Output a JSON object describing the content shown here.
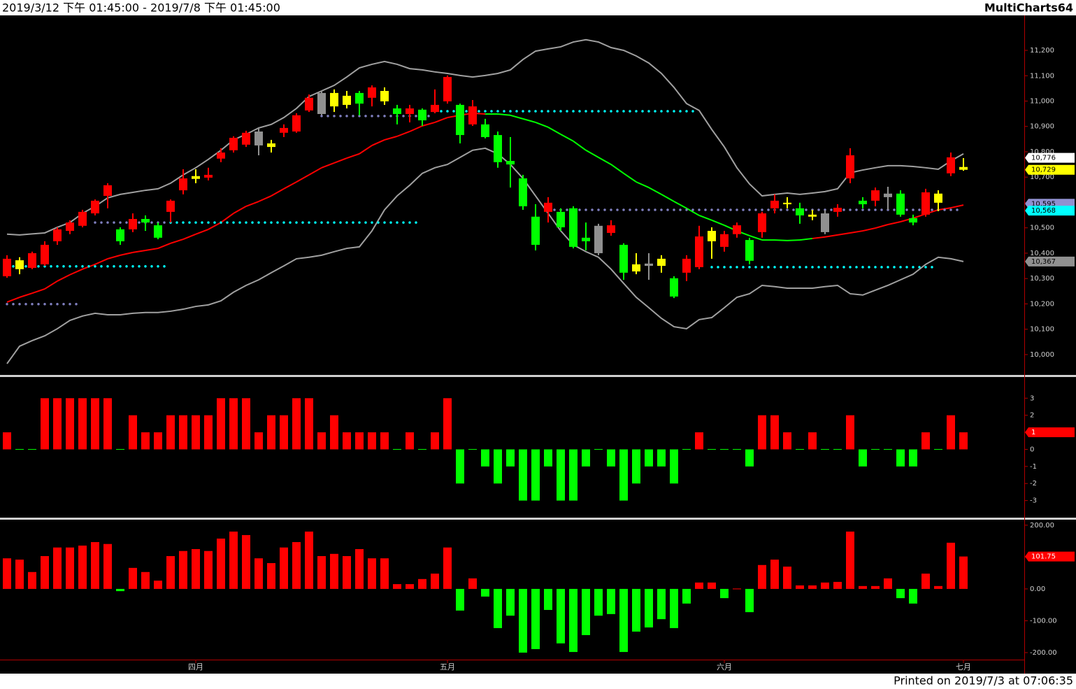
{
  "header": {
    "range": "2019/3/12 下午 01:45:00 - 2019/7/8 下午 01:45:00",
    "app": "MultiCharts64"
  },
  "footer": "Printed on 2019/7/3 at 07:06:35",
  "chart_data": [
    {
      "type": "candlestick",
      "open": [
        10309,
        10372,
        10342,
        10356,
        10447,
        10488,
        10508,
        10557,
        10626,
        10494,
        10494,
        10535,
        10510,
        10563,
        10648,
        10704,
        10698,
        10773,
        10806,
        10828,
        10880,
        10833,
        10875,
        10880,
        10963,
        11032,
        11032,
        11021,
        11032,
        11013,
        11040,
        10971,
        10949,
        10966,
        10957,
        10999,
        10985,
        10908,
        10908,
        10866,
        10764,
        10695,
        10544,
        10563,
        10563,
        10577,
        10461,
        10508,
        10480,
        10433,
        10356,
        10359,
        10378,
        10301,
        10323,
        10345,
        10488,
        10425,
        10475,
        10452,
        10483,
        10577,
        10599,
        10577,
        10552,
        10557,
        10563,
        10695,
        10607,
        10607,
        10635,
        10635,
        10538,
        10552,
        10635,
        10715,
        10740
      ],
      "high": [
        10392,
        10384,
        10406,
        10447,
        10502,
        10530,
        10571,
        10612,
        10676,
        10502,
        10557,
        10549,
        10521,
        10612,
        10731,
        10731,
        10737,
        10814,
        10861,
        10883,
        10897,
        10847,
        10908,
        10952,
        11026,
        11040,
        11046,
        11040,
        11040,
        11062,
        11054,
        10985,
        10985,
        10971,
        11046,
        11101,
        10990,
        11004,
        10930,
        10880,
        10858,
        10709,
        10593,
        10621,
        10577,
        10585,
        10521,
        10516,
        10530,
        10439,
        10400,
        10400,
        10392,
        10309,
        10392,
        10508,
        10502,
        10488,
        10521,
        10461,
        10563,
        10632,
        10621,
        10599,
        10571,
        10571,
        10593,
        10814,
        10621,
        10659,
        10662,
        10648,
        10552,
        10654,
        10648,
        10797,
        10775
      ],
      "low": [
        10303,
        10317,
        10337,
        10350,
        10433,
        10475,
        10502,
        10549,
        10577,
        10433,
        10483,
        10488,
        10455,
        10521,
        10632,
        10676,
        10687,
        10759,
        10797,
        10819,
        10786,
        10797,
        10858,
        10875,
        10957,
        10944,
        10957,
        10971,
        10944,
        10979,
        10985,
        10908,
        10916,
        10902,
        10952,
        10990,
        10833,
        10902,
        10853,
        10737,
        10659,
        10571,
        10411,
        10521,
        10488,
        10419,
        10411,
        10392,
        10469,
        10295,
        10317,
        10295,
        10323,
        10223,
        10290,
        10337,
        10378,
        10406,
        10461,
        10356,
        10461,
        10557,
        10577,
        10516,
        10530,
        10475,
        10544,
        10676,
        10577,
        10585,
        10571,
        10544,
        10510,
        10544,
        10566,
        10704,
        10725
      ],
      "close": [
        10378,
        10337,
        10400,
        10433,
        10494,
        10521,
        10563,
        10607,
        10668,
        10447,
        10535,
        10521,
        10461,
        10607,
        10695,
        10693,
        10709,
        10797,
        10855,
        10875,
        10825,
        10819,
        10894,
        10944,
        11013,
        10949,
        10979,
        10985,
        10990,
        11054,
        10999,
        10949,
        10971,
        10924,
        10985,
        11095,
        10866,
        10979,
        10858,
        10759,
        10750,
        10585,
        10433,
        10599,
        10502,
        10425,
        10447,
        10400,
        10510,
        10323,
        10328,
        10350,
        10350,
        10229,
        10378,
        10466,
        10447,
        10475,
        10510,
        10370,
        10557,
        10607,
        10593,
        10549,
        10544,
        10483,
        10579,
        10786,
        10593,
        10648,
        10621,
        10552,
        10521,
        10640,
        10599,
        10778,
        10729
      ],
      "colors": [
        "#ff0000",
        "#ffff00",
        "#ff0000",
        "#ff0000",
        "#ff0000",
        "#ff0000",
        "#ff0000",
        "#ff0000",
        "#ff0000",
        "#00ff00",
        "#ff0000",
        "#00ff00",
        "#00ff00",
        "#ff0000",
        "#ff0000",
        "#ffff00",
        "#ff0000",
        "#ff0000",
        "#ff0000",
        "#ff0000",
        "#909090",
        "#ffff00",
        "#ff0000",
        "#ff0000",
        "#ff0000",
        "#909090",
        "#ffff00",
        "#ffff00",
        "#00ff00",
        "#ff0000",
        "#ffff00",
        "#00ff00",
        "#ff0000",
        "#00ff00",
        "#ff0000",
        "#ff0000",
        "#00ff00",
        "#ff0000",
        "#00ff00",
        "#00ff00",
        "#00ff00",
        "#00ff00",
        "#00ff00",
        "#ff0000",
        "#00ff00",
        "#00ff00",
        "#00ff00",
        "#909090",
        "#ff0000",
        "#00ff00",
        "#ffff00",
        "#909090",
        "#ffff00",
        "#00ff00",
        "#ff0000",
        "#ff0000",
        "#ffff00",
        "#ff0000",
        "#ff0000",
        "#00ff00",
        "#ff0000",
        "#ff0000",
        "#ffff00",
        "#00ff00",
        "#ffff00",
        "#909090",
        "#ff0000",
        "#ff0000",
        "#00ff00",
        "#ff0000",
        "#909090",
        "#00ff00",
        "#00ff00",
        "#ff0000",
        "#ffff00",
        "#ff0000",
        "#ffff00"
      ],
      "lines": [
        {
          "color": "#a0a0a0",
          "values": [
            10475,
            10472,
            10476,
            10480,
            10502,
            10521,
            10557,
            10585,
            10618,
            10632,
            10640,
            10648,
            10654,
            10676,
            10709,
            10737,
            10770,
            10806,
            10847,
            10869,
            10894,
            10908,
            10935,
            10971,
            11018,
            11040,
            11062,
            11095,
            11131,
            11145,
            11156,
            11145,
            11128,
            11123,
            11115,
            11109,
            11101,
            11095,
            11101,
            11109,
            11123,
            11164,
            11197,
            11206,
            11214,
            11233,
            11242,
            11233,
            11211,
            11200,
            11178,
            11150,
            11109,
            11054,
            10990,
            10963,
            10888,
            10819,
            10737,
            10673,
            10626,
            10632,
            10637,
            10632,
            10637,
            10643,
            10654,
            10717,
            10728,
            10737,
            10745,
            10745,
            10742,
            10737,
            10731,
            10764,
            10792
          ]
        },
        {
          "color": "#a0a0a0",
          "values": [
            9964,
            10033,
            10055,
            10074,
            10102,
            10135,
            10152,
            10163,
            10157,
            10157,
            10163,
            10166,
            10166,
            10171,
            10179,
            10190,
            10196,
            10212,
            10246,
            10273,
            10295,
            10323,
            10350,
            10378,
            10384,
            10392,
            10406,
            10419,
            10425,
            10488,
            10571,
            10626,
            10668,
            10715,
            10737,
            10750,
            10778,
            10806,
            10814,
            10792,
            10750,
            10695,
            10626,
            10557,
            10488,
            10433,
            10406,
            10384,
            10337,
            10281,
            10226,
            10185,
            10143,
            10110,
            10102,
            10138,
            10146,
            10185,
            10226,
            10240,
            10273,
            10268,
            10262,
            10262,
            10262,
            10268,
            10273,
            10240,
            10235,
            10254,
            10273,
            10295,
            10317,
            10356,
            10384,
            10378,
            10367
          ]
        },
        {
          "colors": [
            "#ff0000",
            "#ff0000",
            "#ff0000",
            "#ff0000",
            "#ff0000",
            "#ff0000",
            "#ff0000",
            "#ff0000",
            "#ff0000",
            "#ff0000",
            "#ff0000",
            "#ff0000",
            "#ff0000",
            "#ff0000",
            "#ff0000",
            "#ff0000",
            "#ff0000",
            "#ff0000",
            "#ff0000",
            "#ff0000",
            "#ff0000",
            "#ff0000",
            "#ff0000",
            "#ff0000",
            "#ff0000",
            "#ff0000",
            "#ff0000",
            "#ff0000",
            "#ff0000",
            "#ff0000",
            "#ff0000",
            "#ff0000",
            "#ff0000",
            "#ff0000",
            "#ff0000",
            "#ff0000",
            "#ff0000",
            "#ff0000",
            "#00ff00",
            "#00ff00",
            "#00ff00",
            "#00ff00",
            "#00ff00",
            "#00ff00",
            "#00ff00",
            "#00ff00",
            "#00ff00",
            "#00ff00",
            "#00ff00",
            "#00ff00",
            "#00ff00",
            "#00ff00",
            "#00ff00",
            "#00ff00",
            "#00ff00",
            "#00ff00",
            "#00ff00",
            "#00ff00",
            "#00ff00",
            "#00ff00",
            "#00ff00",
            "#00ff00",
            "#00ff00",
            "#00ff00",
            "#ff0000",
            "#ff0000",
            "#ff0000",
            "#ff0000",
            "#ff0000",
            "#ff0000",
            "#ff0000",
            "#ff0000",
            "#ff0000",
            "#ff0000",
            "#ff0000",
            "#ff0000",
            "#ff0000"
          ],
          "values": [
            10207,
            10226,
            10242,
            10259,
            10290,
            10315,
            10337,
            10356,
            10378,
            10392,
            10403,
            10411,
            10419,
            10439,
            10455,
            10475,
            10494,
            10521,
            10557,
            10585,
            10604,
            10626,
            10654,
            10681,
            10709,
            10737,
            10756,
            10775,
            10792,
            10825,
            10847,
            10861,
            10880,
            10902,
            10916,
            10935,
            10944,
            10952,
            10949,
            10949,
            10944,
            10930,
            10916,
            10897,
            10869,
            10842,
            10806,
            10778,
            10750,
            10715,
            10681,
            10659,
            10632,
            10604,
            10577,
            10549,
            10530,
            10510,
            10488,
            10469,
            10452,
            10452,
            10450,
            10452,
            10458,
            10464,
            10472,
            10480,
            10488,
            10499,
            10513,
            10524,
            10538,
            10555,
            10571,
            10579,
            10590
          ]
        }
      ],
      "levels": [
        {
          "value": 10348,
          "start": 0,
          "end": 13,
          "color": "#00ffff"
        },
        {
          "value": 10199,
          "start": 0,
          "end": 6,
          "color": "#8080c0"
        },
        {
          "value": 10521,
          "start": 7,
          "end": 13,
          "color": "#8080c0"
        },
        {
          "value": 10521,
          "start": 13,
          "end": 33,
          "color": "#00ffff"
        },
        {
          "value": 10941,
          "start": 25,
          "end": 34,
          "color": "#8080c0"
        },
        {
          "value": 10960,
          "start": 34,
          "end": 55,
          "color": "#00ffff"
        },
        {
          "value": 10571,
          "start": 43,
          "end": 76,
          "color": "#8080c0"
        },
        {
          "value": 10345,
          "start": 56,
          "end": 74,
          "color": "#00ffff"
        }
      ],
      "ylim": [
        9917,
        11338
      ],
      "yticks": [
        {
          "value": 10000,
          "label": "10,000"
        },
        {
          "value": 10100,
          "label": "10,100"
        },
        {
          "value": 10200,
          "label": "10,200"
        },
        {
          "value": 10300,
          "label": "10,300"
        },
        {
          "value": 10400,
          "label": "10,400"
        },
        {
          "value": 10500,
          "label": "10,500"
        },
        {
          "value": 10600,
          "label": "10,600"
        },
        {
          "value": 10700,
          "label": "10,700"
        },
        {
          "value": 10800,
          "label": "10,800"
        },
        {
          "value": 10900,
          "label": "10,900"
        },
        {
          "value": 11000,
          "label": "11,000"
        },
        {
          "value": 11100,
          "label": "11,100"
        },
        {
          "value": 11200,
          "label": "11,200"
        }
      ],
      "price_tags": [
        {
          "value": 10776,
          "label": "10,776",
          "color": "#ffffff"
        },
        {
          "value": 10729,
          "label": "10,729",
          "color": "#ffff00"
        },
        {
          "value": 10595,
          "label": "10,595",
          "color": "#9090d0"
        },
        {
          "value": 10568,
          "label": "10,568",
          "color": "#00ffff"
        },
        {
          "value": 10367,
          "label": "10,367",
          "color": "#909090"
        }
      ]
    },
    {
      "type": "bar",
      "values": [
        1,
        0,
        0,
        3,
        3,
        3,
        3,
        3,
        3,
        0,
        2,
        1,
        1,
        2,
        2,
        2,
        2,
        3,
        3,
        3,
        1,
        2,
        2,
        3,
        3,
        1,
        2,
        1,
        1,
        1,
        1,
        0,
        1,
        0,
        1,
        3,
        -2,
        0,
        -1,
        -2,
        -1,
        -3,
        -3,
        -1,
        -3,
        -3,
        -1,
        0,
        -1,
        -3,
        -2,
        -1,
        -1,
        -2,
        0,
        1,
        0,
        0,
        0,
        -1,
        2,
        2,
        1,
        0,
        1,
        0,
        0,
        2,
        -1,
        0,
        0,
        -1,
        -1,
        1,
        0,
        2,
        1
      ],
      "up_color": "#ff0000",
      "down_color": "#00ff00",
      "ylim": [
        -4,
        4.2
      ],
      "yticks": [
        3,
        2,
        1,
        0,
        -1,
        -2,
        -3
      ],
      "price_tags": [
        {
          "value": 1,
          "label": "1",
          "color": "#ff0000"
        }
      ]
    },
    {
      "type": "bar",
      "values": [
        96,
        92,
        53,
        103,
        130,
        130,
        136,
        147,
        141,
        -7,
        66,
        53,
        26,
        103,
        119,
        125,
        119,
        158,
        180,
        169,
        96,
        81,
        130,
        147,
        180,
        103,
        110,
        103,
        125,
        96,
        96,
        15,
        15,
        31,
        48,
        130,
        -68,
        33,
        -24,
        -123,
        -84,
        -200,
        -189,
        -66,
        -171,
        -198,
        -145,
        -84,
        -79,
        -198,
        -134,
        -121,
        -95,
        -123,
        -46,
        20,
        20,
        -29,
        2,
        -73,
        75,
        92,
        70,
        11,
        11,
        20,
        22,
        180,
        9,
        9,
        33,
        -29,
        -46,
        48,
        9,
        145,
        101.75
      ],
      "up_color": "#ff0000",
      "down_color": "#00ff00",
      "ylim": [
        -222,
        215
      ],
      "yticks": [
        {
          "value": 200,
          "label": "200.00"
        },
        {
          "value": 100,
          "label": "100.00"
        },
        {
          "value": 0,
          "label": "0.00"
        },
        {
          "value": -100,
          "label": "-100.00"
        },
        {
          "value": -200,
          "label": "-200.00"
        }
      ],
      "price_tags": [
        {
          "value": 101.75,
          "label": "101.75",
          "color": "#ff0000"
        }
      ],
      "categories": [
        null,
        null,
        null,
        null,
        null,
        null,
        null,
        null,
        null,
        null,
        null,
        null,
        null,
        null,
        null,
        "四月",
        null,
        null,
        null,
        null,
        null,
        null,
        null,
        null,
        null,
        null,
        null,
        null,
        null,
        null,
        null,
        null,
        null,
        null,
        null,
        "五月",
        null,
        null,
        null,
        null,
        null,
        null,
        null,
        null,
        null,
        null,
        null,
        null,
        null,
        null,
        null,
        null,
        null,
        null,
        null,
        null,
        null,
        "六月",
        null,
        null,
        null,
        null,
        null,
        null,
        null,
        null,
        null,
        null,
        null,
        null,
        null,
        null,
        null,
        null,
        null,
        null,
        "七月"
      ]
    }
  ]
}
